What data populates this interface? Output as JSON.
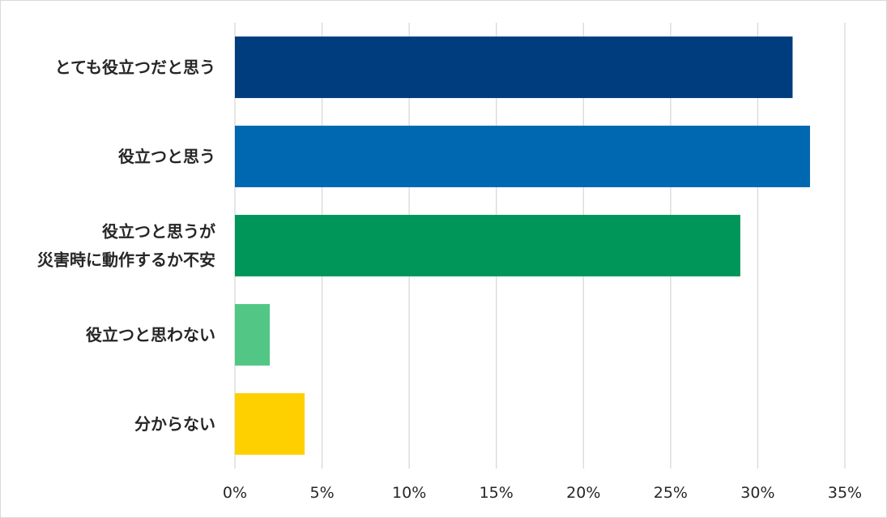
{
  "chart_data": {
    "type": "bar",
    "orientation": "horizontal",
    "categories": [
      [
        "とても役立つだと思う"
      ],
      [
        "役立つと思う"
      ],
      [
        "役立つと思うが",
        "災害時に動作するか不安"
      ],
      [
        "役立つと思わない"
      ],
      [
        "分からない"
      ]
    ],
    "values": [
      32,
      33,
      29,
      2,
      4
    ],
    "colors": [
      "#003D7E",
      "#0067B1",
      "#00965A",
      "#52C785",
      "#FFD000"
    ],
    "x_ticks": [
      "0%",
      "5%",
      "10%",
      "15%",
      "20%",
      "25%",
      "30%",
      "35%"
    ],
    "xlim": [
      0,
      35
    ],
    "title": "",
    "xlabel": "",
    "ylabel": "",
    "grid": "vertical",
    "legend": "none"
  }
}
